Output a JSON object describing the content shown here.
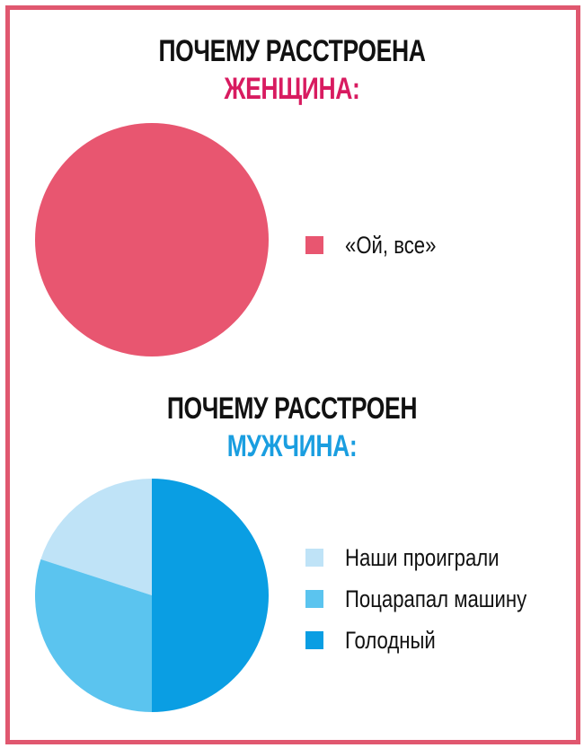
{
  "chart_data": [
    {
      "type": "pie",
      "title": "ПОЧЕМУ РАССТРОЕНА ЖЕНЩИНА:",
      "title_line1": "ПОЧЕМУ РАССТРОЕНА",
      "title_line2": "ЖЕНЩИНА:",
      "title_accent_color": "#d81b60",
      "slices": [
        {
          "label": "«Ой, все»",
          "value": 100,
          "color": "#e85670"
        }
      ],
      "legend_position": "right"
    },
    {
      "type": "pie",
      "title": "ПОЧЕМУ РАССТРОЕН МУЖЧИНА:",
      "title_line1": "ПОЧЕМУ РАССТРОЕН",
      "title_line2": "МУЖЧИНА:",
      "title_accent_color": "#1a9ee0",
      "slices": [
        {
          "label": "Наши проиграли",
          "value": 20,
          "color": "#bfe3f7"
        },
        {
          "label": "Поцарапал машину",
          "value": 30,
          "color": "#5bc4ef"
        },
        {
          "label": "Голодный",
          "value": 50,
          "color": "#0a9ee3"
        }
      ],
      "legend_position": "right"
    }
  ],
  "frame_color": "#e0576f"
}
